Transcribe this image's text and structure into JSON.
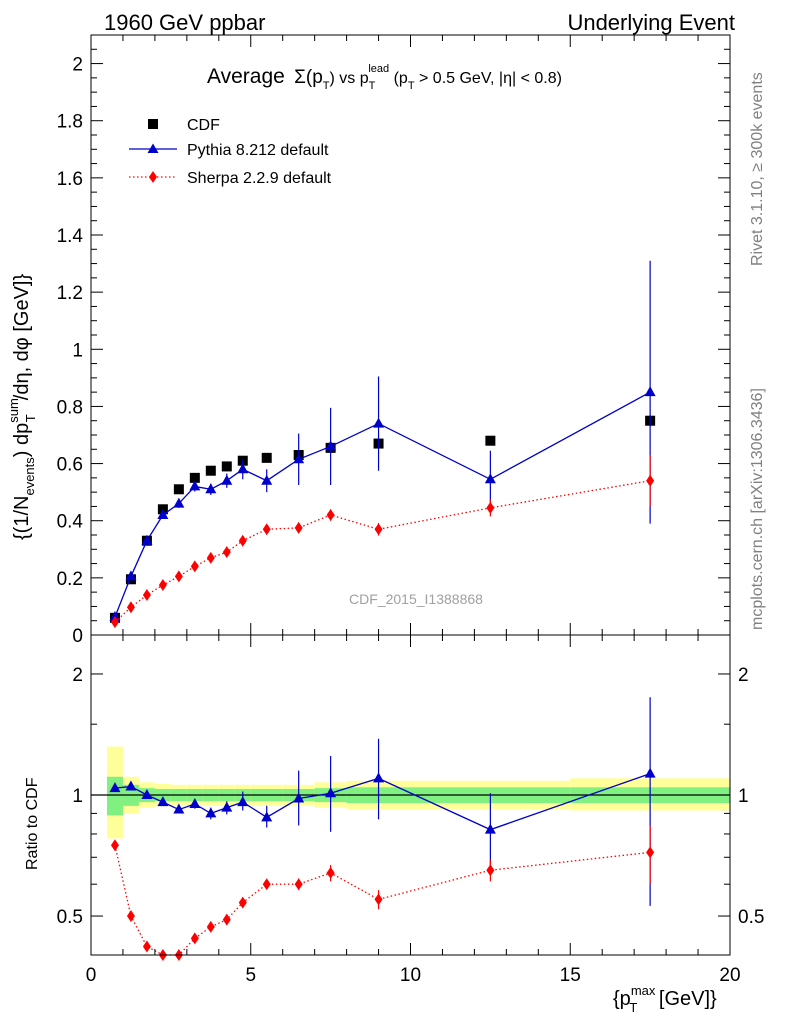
{
  "header": {
    "left": "1960 GeV ppbar",
    "right": "Underlying Event"
  },
  "side": {
    "rivet": "Rivet 3.1.10, ≥ 300k events",
    "mcplots": "mcplots.cern.ch [arXiv:1306.3436]"
  },
  "title": {
    "prefix": "Average",
    "sigma": "Σ(p",
    "sub_T": "T",
    "vs": ") vs p",
    "sup_lead": "lead",
    "cond1": " (p",
    "cond2": " > 0.5 GeV, |η| < 0.8)"
  },
  "watermark": "CDF_2015_I1388868",
  "axes": {
    "ylabel_main": "{(1/N_events) dp_T^sum/dη, dφ [GeV]}",
    "ylabel_main_parts": {
      "a": "{(1/N",
      "sub1": "events",
      "b": ") dp",
      "sup": "sum",
      "sub2": "T",
      "c": "/dη, dφ [GeV]}"
    },
    "ylabel_ratio": "Ratio to CDF",
    "xlabel_parts": {
      "a": "{p",
      "sup": "max",
      "sub": "T",
      "b": " [GeV]}"
    }
  },
  "chart_data": [
    {
      "type": "scatter",
      "panel": "main",
      "xlim": [
        0,
        20
      ],
      "ylim": [
        0,
        2.1
      ],
      "x_ticks": [
        0,
        5,
        10,
        15,
        20
      ],
      "y_ticks": [
        0,
        0.2,
        0.4,
        0.6,
        0.8,
        1,
        1.2,
        1.4,
        1.6,
        1.8,
        2
      ],
      "y_tick_labels": [
        "0",
        "0.2",
        "0.4",
        "0.6",
        "0.8",
        "1",
        "1.2",
        "1.4",
        "1.6",
        "1.8",
        "2"
      ],
      "legend_position": "top-left",
      "series": [
        {
          "name": "CDF",
          "color": "#000000",
          "marker": "square",
          "line": "none",
          "x": [
            0.75,
            1.25,
            1.75,
            2.25,
            2.75,
            3.25,
            3.75,
            4.25,
            4.75,
            5.5,
            6.5,
            7.5,
            9,
            12.5,
            17.5
          ],
          "y": [
            0.06,
            0.195,
            0.33,
            0.44,
            0.51,
            0.55,
            0.575,
            0.59,
            0.61,
            0.62,
            0.63,
            0.655,
            0.67,
            0.68,
            0.75
          ],
          "yerr": [
            0.006,
            0.008,
            0.01,
            0.012,
            0.012,
            0.012,
            0.012,
            0.012,
            0.012,
            0.012,
            0.012,
            0.015,
            0.015,
            0.015,
            0.02
          ]
        },
        {
          "name": "Pythia 8.212 default",
          "color": "#0000cc",
          "marker": "triangle",
          "line": "solid",
          "x": [
            0.75,
            1.25,
            1.75,
            2.25,
            2.75,
            3.25,
            3.75,
            4.25,
            4.75,
            5.5,
            6.5,
            7.5,
            9,
            12.5,
            17.5
          ],
          "y": [
            0.063,
            0.205,
            0.33,
            0.42,
            0.46,
            0.52,
            0.51,
            0.54,
            0.58,
            0.54,
            0.615,
            0.66,
            0.74,
            0.545,
            0.85
          ],
          "yerr": [
            0.004,
            0.006,
            0.008,
            0.012,
            0.015,
            0.018,
            0.02,
            0.025,
            0.035,
            0.04,
            0.09,
            0.135,
            0.165,
            0.1,
            0.46
          ]
        },
        {
          "name": "Sherpa 2.2.9 default",
          "color": "#ff0000",
          "marker": "diamond",
          "line": "dotted",
          "x": [
            0.75,
            1.25,
            1.75,
            2.25,
            2.75,
            3.25,
            3.75,
            4.25,
            4.75,
            5.5,
            6.5,
            7.5,
            9,
            12.5,
            17.5
          ],
          "y": [
            0.045,
            0.097,
            0.14,
            0.175,
            0.205,
            0.24,
            0.27,
            0.29,
            0.33,
            0.37,
            0.375,
            0.42,
            0.37,
            0.445,
            0.54
          ],
          "yerr": [
            0.003,
            0.005,
            0.006,
            0.007,
            0.008,
            0.009,
            0.01,
            0.011,
            0.012,
            0.013,
            0.015,
            0.02,
            0.022,
            0.03,
            0.09
          ]
        }
      ]
    },
    {
      "type": "scatter",
      "panel": "ratio",
      "ylabel": "Ratio to CDF",
      "log_y": true,
      "xlim": [
        0,
        20
      ],
      "ylim": [
        0.4,
        2.5
      ],
      "x_ticks": [
        0,
        5,
        10,
        15,
        20
      ],
      "x_tick_labels": [
        "0",
        "5",
        "10",
        "15",
        "20"
      ],
      "y_labeled_ticks": [
        0.5,
        1,
        2
      ],
      "y_tick_labels": [
        "0.5",
        "1",
        "2"
      ],
      "reference_line": 1,
      "bands": {
        "x_edges": [
          0.5,
          1.0,
          1.5,
          2.0,
          2.5,
          3.0,
          3.5,
          4.0,
          4.5,
          5.0,
          6.0,
          7.0,
          8.0,
          10.0,
          15.0,
          20.0
        ],
        "green": {
          "color": "#80f080",
          "low": [
            0.89,
            0.94,
            0.96,
            0.965,
            0.965,
            0.965,
            0.965,
            0.965,
            0.965,
            0.965,
            0.965,
            0.96,
            0.955,
            0.955,
            0.955
          ],
          "high": [
            1.11,
            1.06,
            1.04,
            1.035,
            1.035,
            1.035,
            1.035,
            1.035,
            1.035,
            1.035,
            1.035,
            1.04,
            1.045,
            1.045,
            1.045
          ]
        },
        "yellow": {
          "color": "#ffff99",
          "low": [
            0.78,
            0.9,
            0.93,
            0.94,
            0.94,
            0.94,
            0.94,
            0.94,
            0.94,
            0.94,
            0.94,
            0.93,
            0.92,
            0.92,
            0.915
          ],
          "high": [
            1.32,
            1.11,
            1.075,
            1.065,
            1.06,
            1.06,
            1.06,
            1.06,
            1.06,
            1.06,
            1.06,
            1.075,
            1.085,
            1.085,
            1.1
          ]
        }
      },
      "series": [
        {
          "name": "Pythia 8.212 default",
          "color": "#0000cc",
          "marker": "triangle",
          "line": "solid",
          "x": [
            0.75,
            1.25,
            1.75,
            2.25,
            2.75,
            3.25,
            3.75,
            4.25,
            4.75,
            5.5,
            6.5,
            7.5,
            9,
            12.5,
            17.5
          ],
          "y": [
            1.04,
            1.05,
            1.0,
            0.96,
            0.92,
            0.95,
            0.9,
            0.93,
            0.96,
            0.88,
            0.98,
            1.01,
            1.1,
            0.82,
            1.13
          ],
          "yerr_low": [
            0.015,
            0.02,
            0.02,
            0.02,
            0.02,
            0.025,
            0.03,
            0.035,
            0.045,
            0.05,
            0.14,
            0.2,
            0.23,
            0.17,
            0.6
          ],
          "yerr_high": [
            0.015,
            0.02,
            0.02,
            0.02,
            0.02,
            0.025,
            0.03,
            0.035,
            0.06,
            0.06,
            0.17,
            0.24,
            0.28,
            0.19,
            0.62
          ]
        },
        {
          "name": "Sherpa 2.2.9 default",
          "color": "#ff0000",
          "marker": "diamond",
          "line": "dotted",
          "x": [
            0.75,
            1.25,
            1.75,
            2.25,
            2.75,
            3.25,
            3.75,
            4.25,
            4.75,
            5.5,
            6.5,
            7.5,
            9,
            12.5,
            17.5
          ],
          "y": [
            0.75,
            0.5,
            0.42,
            0.4,
            0.4,
            0.44,
            0.47,
            0.49,
            0.54,
            0.6,
            0.6,
            0.64,
            0.55,
            0.65,
            0.72
          ],
          "yerr_low": [
            0.01,
            0.01,
            0.01,
            0.01,
            0.01,
            0.01,
            0.012,
            0.012,
            0.015,
            0.015,
            0.02,
            0.03,
            0.03,
            0.04,
            0.12
          ],
          "yerr_high": [
            0.01,
            0.01,
            0.01,
            0.01,
            0.01,
            0.01,
            0.012,
            0.012,
            0.015,
            0.015,
            0.02,
            0.03,
            0.03,
            0.04,
            0.12
          ]
        }
      ]
    }
  ]
}
